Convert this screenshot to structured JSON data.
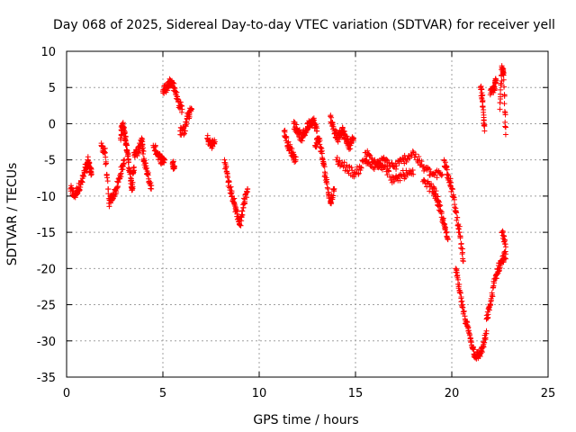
{
  "chart_data": {
    "type": "scatter",
    "title": "Day 068 of 2025, Sidereal Day-to-day VTEC variation (SDTVAR) for receiver yell",
    "xlabel": "GPS time / hours",
    "ylabel": "SDTVAR / TECUs",
    "xlim": [
      0,
      25
    ],
    "ylim": [
      -35,
      10
    ],
    "xticks": [
      0,
      5,
      10,
      15,
      20,
      25
    ],
    "yticks": [
      -35,
      -30,
      -25,
      -20,
      -15,
      -10,
      -5,
      0,
      5,
      10
    ],
    "grid": true,
    "marker": "+",
    "color": "#ff0000",
    "segments": [
      {
        "x": [
          0.2,
          0.4,
          0.6,
          0.8,
          1.0,
          1.1
        ],
        "y": [
          -9,
          -10,
          -9,
          -8,
          -6,
          -6
        ]
      },
      {
        "x": [
          1.1,
          1.2,
          1.3
        ],
        "y": [
          -5,
          -6,
          -7
        ]
      },
      {
        "x": [
          1.8,
          2.0,
          2.2,
          2.4,
          2.6,
          2.8,
          3.0
        ],
        "y": [
          -3,
          -4,
          -11,
          -10,
          -9,
          -7,
          -5
        ]
      },
      {
        "x": [
          2.8,
          2.9,
          3.0,
          3.1,
          3.2,
          3.3,
          3.4,
          3.5
        ],
        "y": [
          -2,
          0,
          -1,
          -3,
          -5,
          -7,
          -9,
          -6
        ]
      },
      {
        "x": [
          3.5,
          3.7,
          3.9,
          4.0,
          4.2,
          4.4
        ],
        "y": [
          -4,
          -4,
          -2,
          -5,
          -7,
          -9
        ]
      },
      {
        "x": [
          4.5,
          4.7,
          4.9,
          5.1
        ],
        "y": [
          -3,
          -4,
          -5,
          -5
        ]
      },
      {
        "x": [
          5.0,
          5.2,
          5.4,
          5.6,
          5.8,
          6.0
        ],
        "y": [
          4.5,
          5,
          6,
          5,
          3,
          2
        ]
      },
      {
        "x": [
          5.5,
          5.6
        ],
        "y": [
          -5.5,
          -6
        ]
      },
      {
        "x": [
          5.9,
          6.1,
          6.3,
          6.5
        ],
        "y": [
          -1,
          -1,
          1,
          2
        ]
      },
      {
        "x": [
          7.3,
          7.5,
          7.7
        ],
        "y": [
          -2,
          -3,
          -2.5
        ]
      },
      {
        "x": [
          8.2,
          8.4,
          8.6,
          8.8,
          9.0,
          9.2,
          9.4
        ],
        "y": [
          -5,
          -8,
          -10,
          -12,
          -14,
          -11,
          -9
        ]
      },
      {
        "x": [
          11.3,
          11.5,
          11.7,
          11.9
        ],
        "y": [
          -1,
          -3,
          -4,
          -5
        ]
      },
      {
        "x": [
          11.8,
          12.0,
          12.2,
          12.4,
          12.6,
          12.8,
          13.0
        ],
        "y": [
          0,
          -1,
          -2,
          -1,
          0,
          0.5,
          -1
        ]
      },
      {
        "x": [
          12.9,
          13.1,
          13.3,
          13.5,
          13.7,
          13.9
        ],
        "y": [
          -3,
          -2,
          -5,
          -8,
          -11,
          -9
        ]
      },
      {
        "x": [
          13.7,
          13.9,
          14.1,
          14.3,
          14.5,
          14.7,
          14.9
        ],
        "y": [
          1,
          -1,
          -2,
          -1,
          -2,
          -3,
          -2
        ]
      },
      {
        "x": [
          14.0,
          14.5,
          15.0,
          15.5,
          16.0,
          16.5,
          17.0,
          17.5,
          18.0,
          18.5,
          19.0,
          19.5
        ],
        "y": [
          -5,
          -6,
          -7,
          -5,
          -6,
          -5,
          -6,
          -5,
          -4,
          -6,
          -7,
          -7
        ]
      },
      {
        "x": [
          15.5,
          16.0,
          16.5,
          17.0,
          17.5,
          18.0
        ],
        "y": [
          -4,
          -5,
          -6,
          -8,
          -7,
          -7
        ]
      },
      {
        "x": [
          18.5,
          19.0,
          19.2,
          19.4,
          19.6,
          19.8
        ],
        "y": [
          -8,
          -9,
          -10,
          -12,
          -14,
          -16
        ]
      },
      {
        "x": [
          19.6,
          19.8,
          20.0,
          20.2,
          20.4,
          20.6
        ],
        "y": [
          -5,
          -7,
          -9,
          -12,
          -15,
          -19
        ]
      },
      {
        "x": [
          20.2,
          20.4,
          20.6,
          20.8,
          21.0,
          21.2,
          21.4,
          21.6,
          21.8
        ],
        "y": [
          -20,
          -23,
          -26,
          -28,
          -30,
          -32,
          -32,
          -31,
          -29
        ]
      },
      {
        "x": [
          21.8,
          22.0,
          22.2,
          22.4,
          22.6,
          22.8
        ],
        "y": [
          -27,
          -25,
          -22,
          -20,
          -19,
          -18
        ]
      },
      {
        "x": [
          21.5,
          21.6,
          21.7
        ],
        "y": [
          5,
          3,
          -1
        ]
      },
      {
        "x": [
          22.0,
          22.2,
          22.3
        ],
        "y": [
          4,
          5,
          6
        ]
      },
      {
        "x": [
          22.5,
          22.6,
          22.7,
          22.8
        ],
        "y": [
          2,
          8,
          7,
          -1.5
        ]
      },
      {
        "x": [
          22.6,
          22.8
        ],
        "y": [
          -15,
          -17
        ]
      }
    ]
  }
}
